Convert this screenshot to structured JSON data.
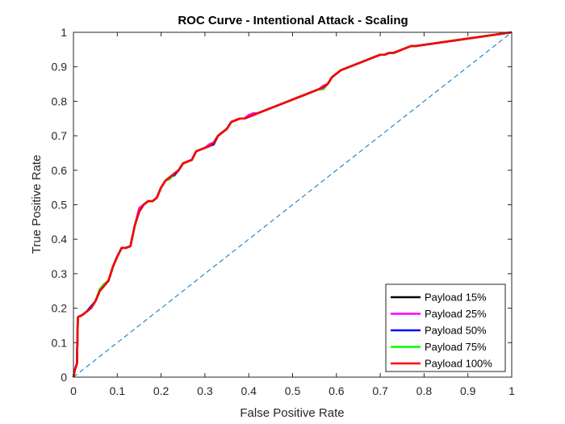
{
  "chart_data": {
    "type": "line",
    "title": "ROC Curve - Intentional Attack - Scaling",
    "xlabel": "False Positive Rate",
    "ylabel": "True Positive Rate",
    "xlim": [
      0,
      1
    ],
    "ylim": [
      0,
      1
    ],
    "xticks": [
      0,
      0.1,
      0.2,
      0.3,
      0.4,
      0.5,
      0.6,
      0.7,
      0.8,
      0.9,
      1
    ],
    "yticks": [
      0,
      0.1,
      0.2,
      0.3,
      0.4,
      0.5,
      0.6,
      0.7,
      0.8,
      0.9,
      1
    ],
    "xtick_labels": [
      "0",
      "0.1",
      "0.2",
      "0.3",
      "0.4",
      "0.5",
      "0.6",
      "0.7",
      "0.8",
      "0.9",
      "1"
    ],
    "ytick_labels": [
      "0",
      "0.1",
      "0.2",
      "0.3",
      "0.4",
      "0.5",
      "0.6",
      "0.7",
      "0.8",
      "0.9",
      "1"
    ],
    "grid": false,
    "legend_position": "bottom-right",
    "reference_line": {
      "x": [
        0,
        1
      ],
      "y": [
        0,
        1
      ],
      "style": "dashed",
      "color": "#0072BD"
    },
    "series": [
      {
        "name": "Payload 15%",
        "color": "#000000",
        "x": [
          0,
          0.003,
          0.008,
          0.01,
          0.011,
          0.02,
          0.03,
          0.04,
          0.05,
          0.06,
          0.07,
          0.08,
          0.09,
          0.1,
          0.11,
          0.12,
          0.13,
          0.14,
          0.15,
          0.16,
          0.17,
          0.18,
          0.19,
          0.2,
          0.21,
          0.22,
          0.23,
          0.24,
          0.25,
          0.26,
          0.27,
          0.28,
          0.29,
          0.3,
          0.31,
          0.32,
          0.33,
          0.34,
          0.35,
          0.36,
          0.37,
          0.38,
          0.39,
          0.4,
          0.41,
          0.42,
          0.43,
          0.44,
          0.45,
          0.46,
          0.47,
          0.48,
          0.49,
          0.5,
          0.51,
          0.52,
          0.53,
          0.54,
          0.55,
          0.56,
          0.57,
          0.58,
          0.59,
          0.6,
          0.61,
          0.62,
          0.63,
          0.64,
          0.65,
          0.66,
          0.67,
          0.68,
          0.69,
          0.7,
          0.71,
          0.72,
          0.73,
          0.74,
          0.75,
          0.76,
          0.77,
          0.78,
          1
        ],
        "y": [
          0,
          0.02,
          0.04,
          0.17,
          0.175,
          0.18,
          0.19,
          0.2,
          0.22,
          0.25,
          0.265,
          0.28,
          0.32,
          0.35,
          0.375,
          0.375,
          0.38,
          0.44,
          0.48,
          0.5,
          0.51,
          0.51,
          0.52,
          0.55,
          0.57,
          0.58,
          0.59,
          0.6,
          0.62,
          0.625,
          0.63,
          0.655,
          0.66,
          0.665,
          0.67,
          0.68,
          0.7,
          0.71,
          0.72,
          0.74,
          0.745,
          0.75,
          0.75,
          0.755,
          0.76,
          0.765,
          0.77,
          0.775,
          0.78,
          0.785,
          0.79,
          0.795,
          0.8,
          0.805,
          0.81,
          0.815,
          0.82,
          0.825,
          0.83,
          0.835,
          0.84,
          0.85,
          0.87,
          0.88,
          0.89,
          0.895,
          0.9,
          0.905,
          0.91,
          0.915,
          0.92,
          0.925,
          0.93,
          0.935,
          0.935,
          0.94,
          0.94,
          0.945,
          0.95,
          0.955,
          0.96,
          0.96,
          1
        ]
      },
      {
        "name": "Payload 25%",
        "color": "#FF00FF",
        "x": [
          0,
          0.003,
          0.008,
          0.01,
          0.011,
          0.02,
          0.03,
          0.04,
          0.05,
          0.06,
          0.07,
          0.08,
          0.09,
          0.1,
          0.11,
          0.12,
          0.13,
          0.14,
          0.15,
          0.16,
          0.17,
          0.18,
          0.19,
          0.2,
          0.21,
          0.22,
          0.23,
          0.24,
          0.25,
          0.26,
          0.27,
          0.28,
          0.29,
          0.3,
          0.31,
          0.32,
          0.33,
          0.34,
          0.35,
          0.36,
          0.37,
          0.38,
          0.39,
          0.4,
          0.41,
          0.42,
          0.43,
          0.44,
          0.45,
          0.46,
          0.47,
          0.48,
          0.49,
          0.5,
          0.51,
          0.52,
          0.53,
          0.54,
          0.55,
          0.56,
          0.57,
          0.58,
          0.59,
          0.6,
          0.61,
          0.62,
          0.63,
          0.64,
          0.65,
          0.66,
          0.67,
          0.68,
          0.69,
          0.7,
          0.71,
          0.72,
          0.73,
          0.74,
          0.75,
          0.76,
          0.77,
          0.78,
          1
        ],
        "y": [
          0,
          0.02,
          0.04,
          0.17,
          0.175,
          0.18,
          0.19,
          0.2,
          0.22,
          0.25,
          0.265,
          0.28,
          0.32,
          0.35,
          0.375,
          0.375,
          0.38,
          0.44,
          0.49,
          0.5,
          0.51,
          0.51,
          0.52,
          0.55,
          0.57,
          0.58,
          0.59,
          0.6,
          0.62,
          0.625,
          0.63,
          0.655,
          0.66,
          0.665,
          0.675,
          0.68,
          0.7,
          0.71,
          0.72,
          0.74,
          0.745,
          0.75,
          0.75,
          0.76,
          0.765,
          0.765,
          0.77,
          0.775,
          0.78,
          0.785,
          0.79,
          0.795,
          0.8,
          0.805,
          0.81,
          0.815,
          0.82,
          0.825,
          0.83,
          0.835,
          0.845,
          0.85,
          0.87,
          0.88,
          0.89,
          0.895,
          0.9,
          0.905,
          0.91,
          0.915,
          0.92,
          0.925,
          0.93,
          0.935,
          0.935,
          0.94,
          0.94,
          0.945,
          0.95,
          0.955,
          0.96,
          0.96,
          1
        ]
      },
      {
        "name": "Payload 50%",
        "color": "#0000FF",
        "x": [
          0,
          0.003,
          0.008,
          0.01,
          0.011,
          0.02,
          0.03,
          0.04,
          0.05,
          0.06,
          0.07,
          0.08,
          0.09,
          0.1,
          0.11,
          0.12,
          0.13,
          0.14,
          0.15,
          0.16,
          0.17,
          0.18,
          0.19,
          0.2,
          0.21,
          0.22,
          0.23,
          0.24,
          0.25,
          0.26,
          0.27,
          0.28,
          0.29,
          0.3,
          0.31,
          0.32,
          0.33,
          0.34,
          0.35,
          0.36,
          0.37,
          0.38,
          0.39,
          0.4,
          0.41,
          0.42,
          0.43,
          0.44,
          0.45,
          0.46,
          0.47,
          0.48,
          0.49,
          0.5,
          0.51,
          0.52,
          0.53,
          0.54,
          0.55,
          0.56,
          0.57,
          0.58,
          0.59,
          0.6,
          0.61,
          0.62,
          0.63,
          0.64,
          0.65,
          0.66,
          0.67,
          0.68,
          0.69,
          0.7,
          0.71,
          0.72,
          0.73,
          0.74,
          0.75,
          0.76,
          0.77,
          0.78,
          1
        ],
        "y": [
          0,
          0.02,
          0.04,
          0.17,
          0.175,
          0.18,
          0.19,
          0.205,
          0.22,
          0.25,
          0.265,
          0.28,
          0.32,
          0.35,
          0.375,
          0.375,
          0.38,
          0.44,
          0.48,
          0.5,
          0.51,
          0.51,
          0.52,
          0.55,
          0.57,
          0.58,
          0.585,
          0.6,
          0.62,
          0.625,
          0.63,
          0.655,
          0.66,
          0.665,
          0.67,
          0.675,
          0.7,
          0.71,
          0.72,
          0.74,
          0.745,
          0.75,
          0.75,
          0.755,
          0.76,
          0.765,
          0.77,
          0.775,
          0.78,
          0.785,
          0.79,
          0.795,
          0.8,
          0.805,
          0.81,
          0.815,
          0.82,
          0.825,
          0.83,
          0.835,
          0.84,
          0.85,
          0.87,
          0.88,
          0.89,
          0.895,
          0.9,
          0.905,
          0.91,
          0.915,
          0.92,
          0.925,
          0.93,
          0.935,
          0.935,
          0.94,
          0.94,
          0.945,
          0.95,
          0.955,
          0.96,
          0.96,
          1
        ]
      },
      {
        "name": "Payload 75%",
        "color": "#00FF00",
        "x": [
          0,
          0.003,
          0.008,
          0.01,
          0.011,
          0.02,
          0.03,
          0.04,
          0.05,
          0.06,
          0.07,
          0.08,
          0.09,
          0.1,
          0.11,
          0.12,
          0.13,
          0.14,
          0.15,
          0.16,
          0.17,
          0.18,
          0.19,
          0.2,
          0.21,
          0.22,
          0.23,
          0.24,
          0.25,
          0.26,
          0.27,
          0.28,
          0.29,
          0.3,
          0.31,
          0.32,
          0.33,
          0.34,
          0.35,
          0.36,
          0.37,
          0.38,
          0.39,
          0.4,
          0.41,
          0.42,
          0.43,
          0.44,
          0.45,
          0.46,
          0.47,
          0.48,
          0.49,
          0.5,
          0.51,
          0.52,
          0.53,
          0.54,
          0.55,
          0.56,
          0.57,
          0.58,
          0.59,
          0.6,
          0.61,
          0.62,
          0.63,
          0.64,
          0.65,
          0.66,
          0.67,
          0.68,
          0.69,
          0.7,
          0.71,
          0.72,
          0.73,
          0.74,
          0.75,
          0.76,
          0.77,
          0.78,
          1
        ],
        "y": [
          0,
          0.02,
          0.04,
          0.17,
          0.175,
          0.18,
          0.19,
          0.2,
          0.22,
          0.255,
          0.27,
          0.28,
          0.32,
          0.35,
          0.375,
          0.375,
          0.38,
          0.44,
          0.48,
          0.5,
          0.51,
          0.51,
          0.52,
          0.55,
          0.57,
          0.575,
          0.59,
          0.6,
          0.62,
          0.625,
          0.63,
          0.655,
          0.66,
          0.665,
          0.67,
          0.68,
          0.7,
          0.71,
          0.72,
          0.74,
          0.745,
          0.75,
          0.75,
          0.755,
          0.76,
          0.765,
          0.77,
          0.775,
          0.78,
          0.785,
          0.79,
          0.795,
          0.8,
          0.805,
          0.81,
          0.815,
          0.82,
          0.825,
          0.83,
          0.835,
          0.835,
          0.85,
          0.87,
          0.88,
          0.89,
          0.895,
          0.9,
          0.905,
          0.91,
          0.915,
          0.92,
          0.925,
          0.93,
          0.935,
          0.935,
          0.94,
          0.94,
          0.945,
          0.95,
          0.955,
          0.96,
          0.96,
          1
        ]
      },
      {
        "name": "Payload 100%",
        "color": "#FF0000",
        "x": [
          0,
          0.003,
          0.008,
          0.01,
          0.011,
          0.02,
          0.03,
          0.04,
          0.05,
          0.06,
          0.07,
          0.08,
          0.09,
          0.1,
          0.11,
          0.12,
          0.13,
          0.14,
          0.15,
          0.16,
          0.17,
          0.18,
          0.19,
          0.2,
          0.21,
          0.22,
          0.23,
          0.24,
          0.25,
          0.26,
          0.27,
          0.28,
          0.29,
          0.3,
          0.31,
          0.32,
          0.33,
          0.34,
          0.35,
          0.36,
          0.37,
          0.38,
          0.39,
          0.4,
          0.41,
          0.42,
          0.43,
          0.44,
          0.45,
          0.46,
          0.47,
          0.48,
          0.49,
          0.5,
          0.51,
          0.52,
          0.53,
          0.54,
          0.55,
          0.56,
          0.57,
          0.58,
          0.59,
          0.6,
          0.61,
          0.62,
          0.63,
          0.64,
          0.65,
          0.66,
          0.67,
          0.68,
          0.69,
          0.7,
          0.71,
          0.72,
          0.73,
          0.74,
          0.75,
          0.76,
          0.77,
          0.78,
          1
        ],
        "y": [
          0,
          0.02,
          0.04,
          0.17,
          0.175,
          0.18,
          0.19,
          0.2,
          0.22,
          0.25,
          0.265,
          0.28,
          0.32,
          0.35,
          0.375,
          0.375,
          0.38,
          0.44,
          0.48,
          0.5,
          0.51,
          0.51,
          0.52,
          0.55,
          0.57,
          0.58,
          0.59,
          0.6,
          0.62,
          0.625,
          0.63,
          0.655,
          0.66,
          0.665,
          0.67,
          0.68,
          0.7,
          0.71,
          0.72,
          0.74,
          0.745,
          0.75,
          0.75,
          0.755,
          0.76,
          0.765,
          0.77,
          0.775,
          0.78,
          0.785,
          0.79,
          0.795,
          0.8,
          0.805,
          0.81,
          0.815,
          0.82,
          0.825,
          0.83,
          0.835,
          0.84,
          0.85,
          0.87,
          0.88,
          0.89,
          0.895,
          0.9,
          0.905,
          0.91,
          0.915,
          0.92,
          0.925,
          0.93,
          0.935,
          0.935,
          0.94,
          0.94,
          0.945,
          0.95,
          0.955,
          0.96,
          0.96,
          1
        ]
      }
    ]
  }
}
